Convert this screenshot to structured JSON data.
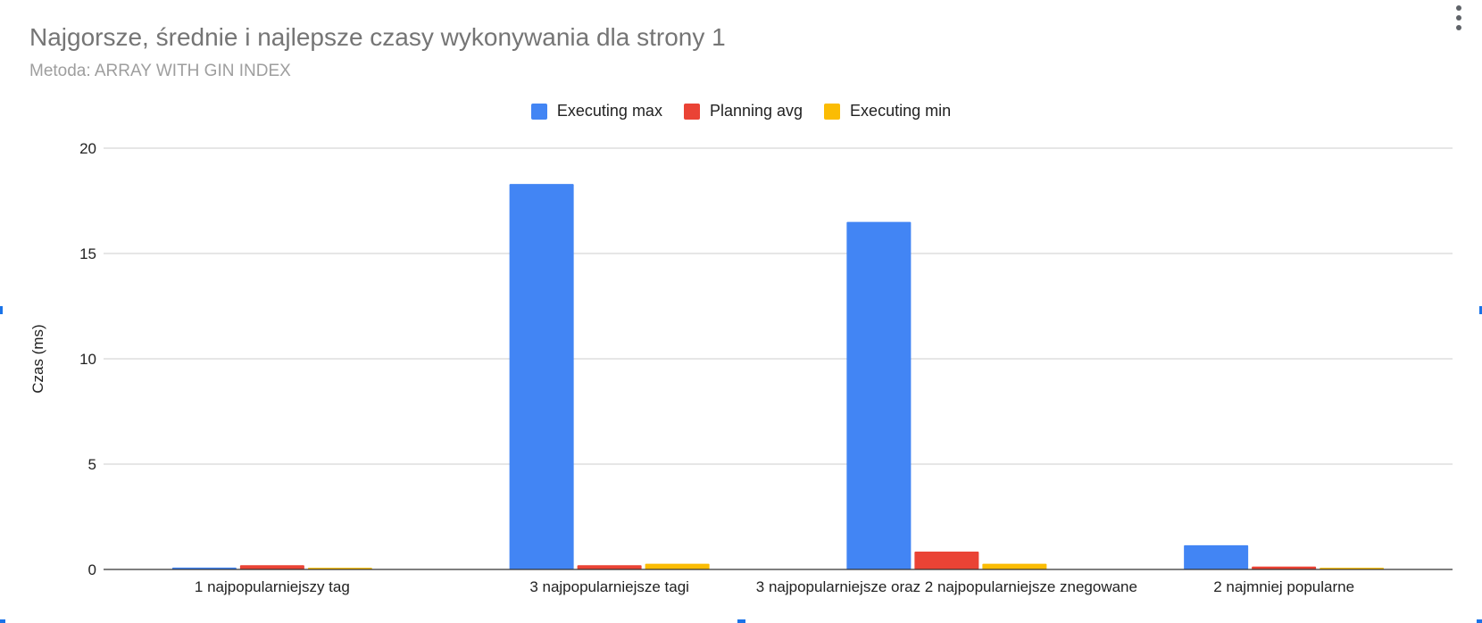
{
  "menu": {
    "icon": "more-vert-icon"
  },
  "chart_data": {
    "type": "bar",
    "title": "Najgorsze, średnie i najlepsze czasy wykonywania dla strony 1",
    "subtitle": "Metoda: ARRAY WITH GIN INDEX",
    "xlabel": "",
    "ylabel": "Czas (ms)",
    "ylim": [
      0,
      20
    ],
    "yticks": [
      0,
      5,
      10,
      15,
      20
    ],
    "grid": true,
    "legend_position": "top",
    "categories": [
      "1 najpopularniejszy tag",
      "3 najpopularniejsze tagi",
      "3 najpopularniejsze oraz 2 najpopularniejsze znegowane",
      "2 najmniej popularne"
    ],
    "series": [
      {
        "name": "Executing max",
        "color": "#4285f4",
        "values": [
          0.09,
          18.3,
          16.5,
          1.15
        ]
      },
      {
        "name": "Planning avg",
        "color": "#ea4335",
        "values": [
          0.2,
          0.2,
          0.85,
          0.14
        ]
      },
      {
        "name": "Executing min",
        "color": "#fbbc04",
        "values": [
          0.08,
          0.27,
          0.27,
          0.08
        ]
      }
    ]
  }
}
